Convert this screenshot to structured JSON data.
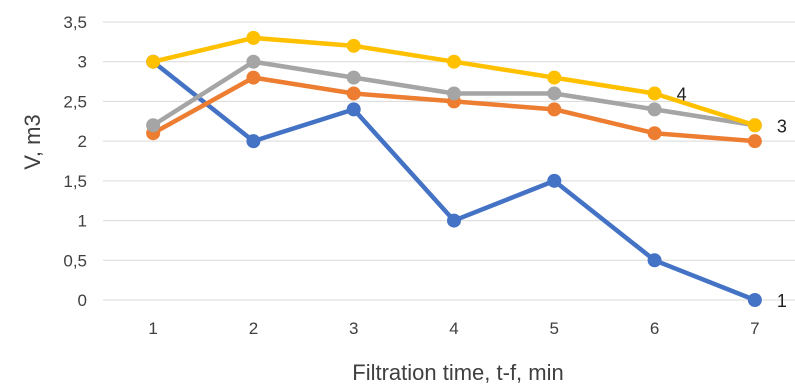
{
  "chart_data": {
    "type": "line",
    "title": "",
    "xlabel": "Filtration time, t-f, min",
    "ylabel": "V, m3",
    "x": [
      1,
      2,
      3,
      4,
      5,
      6,
      7
    ],
    "x_tick_labels": [
      "1",
      "2",
      "3",
      "4",
      "5",
      "6",
      "7"
    ],
    "ylim": [
      0,
      3.5
    ],
    "y_tick_values": [
      0,
      0.5,
      1,
      1.5,
      2,
      2.5,
      3,
      3.5
    ],
    "y_tick_labels": [
      "0",
      "0,5",
      "1",
      "1,5",
      "2",
      "2,5",
      "3",
      "3,5"
    ],
    "grid": true,
    "legend": "none",
    "series": [
      {
        "name": "1",
        "color": "#4472C4",
        "values": [
          3.0,
          2.0,
          2.4,
          1.0,
          1.5,
          0.5,
          0.0
        ]
      },
      {
        "name": "",
        "color": "#ED7D31",
        "values": [
          2.1,
          2.8,
          2.6,
          2.5,
          2.4,
          2.1,
          2.0
        ]
      },
      {
        "name": "3",
        "color": "#A5A5A5",
        "values": [
          2.2,
          3.0,
          2.8,
          2.6,
          2.6,
          2.4,
          2.2
        ]
      },
      {
        "name": "4",
        "color": "#FFC000",
        "values": [
          3.0,
          3.3,
          3.2,
          3.0,
          2.8,
          2.6,
          2.2
        ]
      }
    ],
    "annotations": [
      {
        "text": "1",
        "series_index": 0,
        "point_index": 6
      },
      {
        "text": "3",
        "series_index": 2,
        "point_index": 6
      },
      {
        "text": "4",
        "series_index": 3,
        "point_index": 5
      }
    ]
  }
}
